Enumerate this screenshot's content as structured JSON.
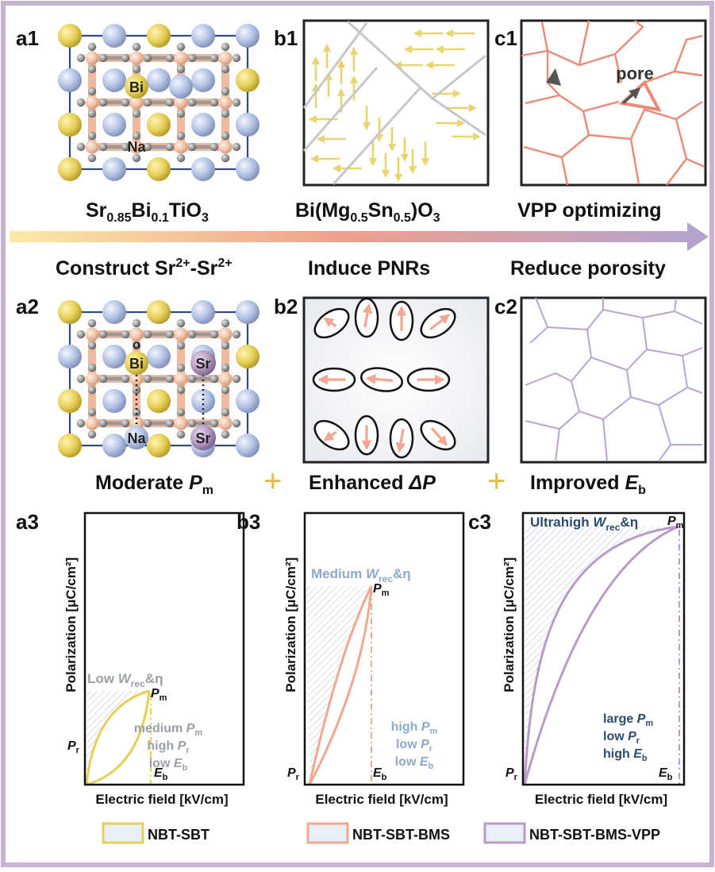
{
  "panels": {
    "a1": "a1",
    "b1": "b1",
    "c1": "c1",
    "a2": "a2",
    "b2": "b2",
    "c2": "c2",
    "a3": "a3",
    "b3": "b3",
    "c3": "c3"
  },
  "atoms": {
    "bi": "Bi",
    "na": "Na",
    "sr": "Sr",
    "o": "o",
    "pore": "pore"
  },
  "formulas": {
    "sbt": {
      "sr": "Sr",
      "sr_sub": "0.85",
      "bi": "Bi",
      "bi_sub": "0.1",
      "ti": "TiO",
      "ti_sub": "3"
    },
    "bms": {
      "pre": "Bi(Mg",
      "mg_sub": "0.5",
      "mid": "Sn",
      "sn_sub": "0.5",
      "post": ")O",
      "o_sub": "3"
    },
    "vpp": "VPP optimizing"
  },
  "steps": {
    "construct": "Construct Sr",
    "construct_sup1": "2+",
    "construct_mid": "-Sr",
    "construct_sup2": "2+",
    "induce": "Induce PNRs",
    "reduce": "Reduce porosity"
  },
  "results": {
    "moderate": "Moderate ",
    "moderate_sym": "P",
    "moderate_sub": "m",
    "enhanced": "Enhanced ",
    "enhanced_sym": "ΔP",
    "improved": "Improved ",
    "improved_sym": "E",
    "improved_sub": "b",
    "plus": "+"
  },
  "plots": {
    "ylabel": "Polarization [μC/cm²]",
    "xlabel": "Electric field [kV/cm]",
    "a3": {
      "energy_pre": "Low ",
      "energy_sym": "W",
      "energy_sub": "rec",
      "energy_post": "&η",
      "props": [
        [
          "medium ",
          "P",
          "m"
        ],
        [
          "high ",
          "P",
          "r"
        ],
        [
          "low ",
          "E",
          "b"
        ]
      ]
    },
    "b3": {
      "energy_pre": "Medium ",
      "energy_sym": "W",
      "energy_sub": "rec",
      "energy_post": "&η",
      "props": [
        [
          "high ",
          "P",
          "m"
        ],
        [
          "low ",
          "P",
          "r"
        ],
        [
          "low ",
          "E",
          "b"
        ]
      ]
    },
    "c3": {
      "energy_pre": "Ultrahigh ",
      "energy_sym": "W",
      "energy_sub": "rec",
      "energy_post": "&η",
      "props": [
        [
          "large ",
          "P",
          "m"
        ],
        [
          "low ",
          "P",
          "r"
        ],
        [
          "high ",
          "E",
          "b"
        ]
      ]
    },
    "pm_sym": "P",
    "pm_sub": "m",
    "pr_sym": "P",
    "pr_sub": "r",
    "eb_sym": "E",
    "eb_sub": "b"
  },
  "legend": [
    "NBT-SBT",
    "NBT-SBT-BMS",
    "NBT-SBT-BMS-VPP"
  ],
  "colors": {
    "frame": "#c9b2d3",
    "yellow": "#e6cf57",
    "blue": "#aebfe0",
    "salmon": "#f0a98e",
    "purple": "#b99ac9",
    "grain_red": "#ee8876",
    "grain_purple": "#b9a3d3",
    "arrow_yellow": "#e9d56f",
    "navy": "#2c4a6e",
    "label_blue": "#8fa8c8"
  }
}
